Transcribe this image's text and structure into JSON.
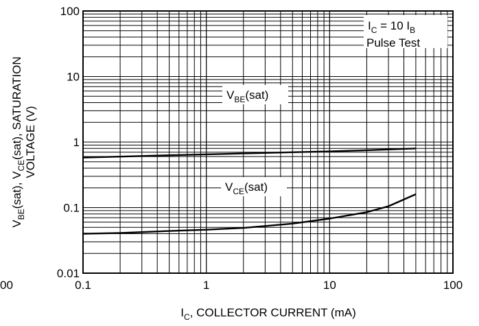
{
  "chart_data": {
    "type": "line",
    "x_scale": "log",
    "y_scale": "log",
    "xlim": [
      0.1,
      100
    ],
    "ylim": [
      0.01,
      100
    ],
    "grid": true,
    "x_ticks": [
      "0.1",
      "1",
      "10",
      "100"
    ],
    "y_ticks": [
      "0.01",
      "0.1",
      "1",
      "10",
      "100"
    ],
    "stray_tick_label": "00",
    "xlabel": {
      "base": "I",
      "sub": "C",
      "rest": ", COLLECTOR CURRENT (mA)"
    },
    "ylabel": {
      "line1": [
        {
          "t": "V",
          "sub": false
        },
        {
          "t": "BE",
          "sub": true
        },
        {
          "t": "(sat), V",
          "sub": false
        },
        {
          "t": "CE",
          "sub": true
        },
        {
          "t": "(sat), SATURATION",
          "sub": false
        }
      ],
      "line2": "VOLTAGE (V)"
    },
    "legend": {
      "line1": [
        {
          "t": "I",
          "sub": false
        },
        {
          "t": "C",
          "sub": true
        },
        {
          "t": " = 10 I",
          "sub": false
        },
        {
          "t": "B",
          "sub": true
        }
      ],
      "line2": "Pulse Test"
    },
    "series": [
      {
        "name": "VBE(sat)",
        "label": [
          {
            "t": "V",
            "sub": false
          },
          {
            "t": "BE",
            "sub": true
          },
          {
            "t": "(sat)",
            "sub": false
          }
        ],
        "x": [
          0.1,
          0.2,
          0.5,
          1,
          2,
          5,
          10,
          20,
          50
        ],
        "y": [
          0.58,
          0.6,
          0.63,
          0.65,
          0.67,
          0.7,
          0.72,
          0.75,
          0.8
        ]
      },
      {
        "name": "VCE(sat)",
        "label": [
          {
            "t": "V",
            "sub": false
          },
          {
            "t": "CE",
            "sub": true
          },
          {
            "t": "(sat)",
            "sub": false
          }
        ],
        "x": [
          0.1,
          0.2,
          0.5,
          1,
          2,
          5,
          10,
          20,
          30,
          50
        ],
        "y": [
          0.04,
          0.041,
          0.044,
          0.046,
          0.049,
          0.057,
          0.068,
          0.085,
          0.105,
          0.16
        ]
      }
    ]
  }
}
